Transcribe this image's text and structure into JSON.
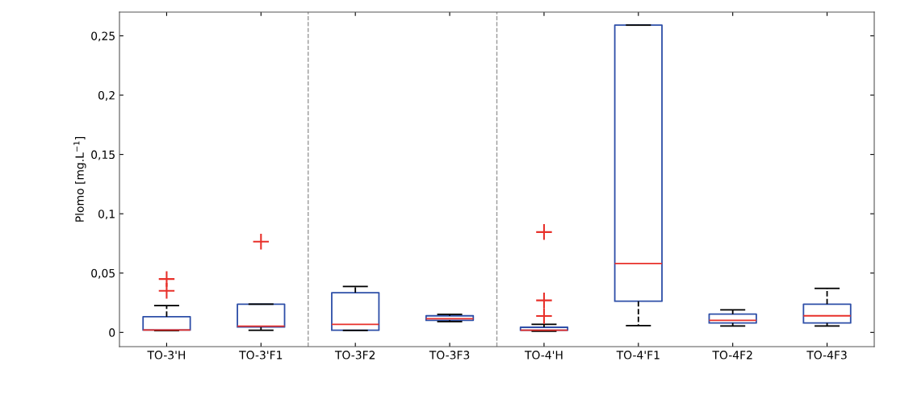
{
  "chart_data": {
    "type": "box",
    "ylabel": "Plomo [mg.L$^{−1}$]",
    "categories": [
      "TO-3'H",
      "TO-3'F1",
      "TO-3F2",
      "TO-3F3",
      "TO-4'H",
      "TO-4'F1",
      "TO-4F2",
      "TO-4F3"
    ],
    "boxes": [
      {
        "low": 0.0015,
        "q1": 0.002,
        "median": 0.002,
        "q3": 0.0132,
        "high": 0.0226,
        "outliers": [
          0.035,
          0.045
        ]
      },
      {
        "low": 0.0018,
        "q1": 0.0045,
        "median": 0.0052,
        "q3": 0.0238,
        "high": 0.0238,
        "outliers": [
          0.0765
        ]
      },
      {
        "low": 0.0017,
        "q1": 0.0018,
        "median": 0.0068,
        "q3": 0.0335,
        "high": 0.0387
      },
      {
        "low": 0.0091,
        "q1": 0.0102,
        "median": 0.0115,
        "q3": 0.014,
        "high": 0.0152
      },
      {
        "low": 0.001,
        "q1": 0.0018,
        "median": 0.0018,
        "q3": 0.0043,
        "high": 0.0068,
        "outliers": [
          0.0138,
          0.027,
          0.0846
        ]
      },
      {
        "low": 0.0057,
        "q1": 0.0263,
        "median": 0.0581,
        "q3": 0.259,
        "high": 0.259
      },
      {
        "low": 0.0054,
        "q1": 0.0079,
        "median": 0.0102,
        "q3": 0.0154,
        "high": 0.019
      },
      {
        "low": 0.0054,
        "q1": 0.0079,
        "median": 0.014,
        "q3": 0.0238,
        "high": 0.0371
      }
    ],
    "color": "#2e4fa8",
    "marker": "cross",
    "line_style": "dashed",
    "ylim": [
      -0.012,
      0.27
    ],
    "yticks": [
      {
        "value": 0,
        "label": "0"
      },
      {
        "value": 0.05,
        "label": "0,05"
      },
      {
        "value": 0.1,
        "label": "0,1"
      },
      {
        "value": 0.15,
        "label": "0,15"
      },
      {
        "value": 0.2,
        "label": "0,2"
      },
      {
        "value": 0.25,
        "label": "0,25"
      }
    ],
    "grid": false,
    "legend": false
  }
}
